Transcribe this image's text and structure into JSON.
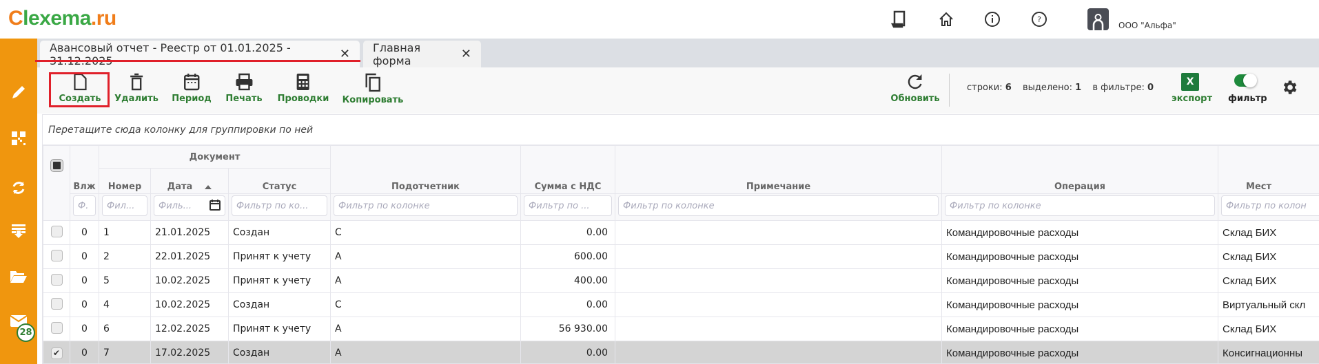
{
  "brand": {
    "logo_text": "lexema.ru",
    "accent": "#f0960e",
    "green": "#2e7d32",
    "red_highlight": "#e0202a"
  },
  "header": {
    "icons": [
      "tablet-icon",
      "home-icon",
      "info-icon",
      "help-icon"
    ],
    "company": "ООО \"Альфа\""
  },
  "sidebar": {
    "icons": [
      "pencil-icon",
      "qr-code-icon",
      "sync-icon",
      "download-list-icon",
      "folder-icon",
      "mail-icon"
    ],
    "mail_badge": "28"
  },
  "tabs": [
    {
      "label": "Авансовый отчет - Реестр от 01.01.2025 - 31.12.2025",
      "active": true
    },
    {
      "label": "Главная форма",
      "active": false
    }
  ],
  "toolbar": {
    "create": "Создать",
    "delete": "Удалить",
    "period": "Период",
    "print": "Печать",
    "postings": "Проводки",
    "copy": "Копировать",
    "refresh": "Обновить",
    "stats": {
      "rows_label": "строки:",
      "rows": "6",
      "selected_label": "выделено:",
      "selected": "1",
      "in_filter_label": "в фильтре:",
      "in_filter": "0"
    },
    "export": "экспорт",
    "excel_glyph": "X",
    "filter": "фильтр",
    "filter_on": true
  },
  "grid": {
    "group_hint": "Перетащите сюда колонку для группировки по ней",
    "group_header": "Документ",
    "columns": [
      "Влж",
      "Номер",
      "Дата",
      "Статус",
      "Подотчетник",
      "Сумма с НДС",
      "Примечание",
      "Операция",
      "Мест"
    ],
    "filters": [
      "Ф.",
      "Фил...",
      "Филь...",
      "Фильтр по ко...",
      "Фильтр по колонке",
      "Фильтр по ...",
      "Фильтр по колонке",
      "Фильтр по колонке",
      "Фильтр по колон"
    ],
    "sort": {
      "column": "Дата",
      "direction": "asc"
    },
    "rows": [
      {
        "checked": false,
        "vlzh": "0",
        "number": "1",
        "date": "21.01.2025",
        "status": "Создан",
        "person": "С",
        "sum": "0.00",
        "note": "",
        "operation": "Командировочные расходы",
        "place": "Склад БИХ"
      },
      {
        "checked": false,
        "vlzh": "0",
        "number": "2",
        "date": "22.01.2025",
        "status": "Принят к учету",
        "person": "А",
        "sum": "600.00",
        "note": "",
        "operation": "Командировочные расходы",
        "place": "Склад БИХ"
      },
      {
        "checked": false,
        "vlzh": "0",
        "number": "5",
        "date": "10.02.2025",
        "status": "Принят к учету",
        "person": "А",
        "sum": "400.00",
        "note": "",
        "operation": "Командировочные расходы",
        "place": "Склад БИХ"
      },
      {
        "checked": false,
        "vlzh": "0",
        "number": "4",
        "date": "10.02.2025",
        "status": "Создан",
        "person": "С",
        "sum": "0.00",
        "note": "",
        "operation": "Командировочные расходы",
        "place": "Виртуальный скл"
      },
      {
        "checked": false,
        "vlzh": "0",
        "number": "6",
        "date": "12.02.2025",
        "status": "Принят к учету",
        "person": "А",
        "sum": "56 930.00",
        "note": "",
        "operation": "Командировочные расходы",
        "place": "Склад БИХ"
      },
      {
        "checked": true,
        "vlzh": "0",
        "number": "7",
        "date": "17.02.2025",
        "status": "Создан",
        "person": "А",
        "sum": "0.00",
        "note": "",
        "operation": "Командировочные расходы",
        "place": "Консигнационны"
      }
    ]
  }
}
